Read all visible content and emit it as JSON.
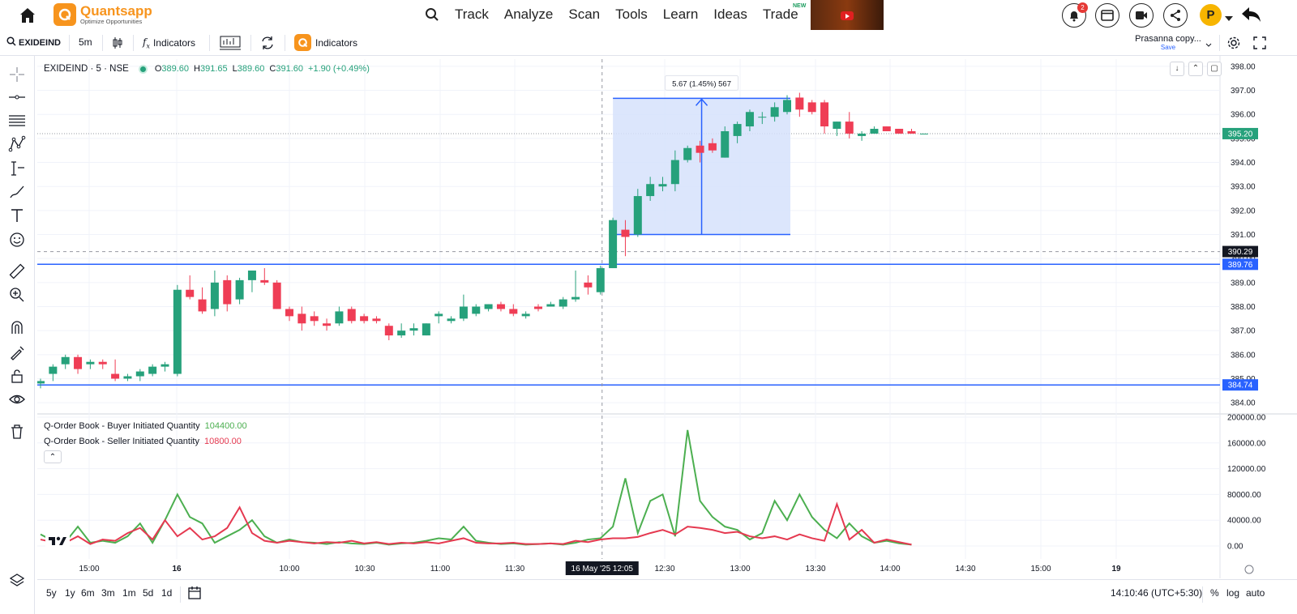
{
  "nav": {
    "logo_name": "Quantsapp",
    "logo_tagline": "Optimize Opportunities",
    "links": [
      "Track",
      "Analyze",
      "Scan",
      "Tools",
      "Learn",
      "Ideas",
      "Trade"
    ],
    "trade_badge": "NEW",
    "notification_count": "2",
    "avatar_letter": "P"
  },
  "toolbar": {
    "symbol": "EXIDEIND",
    "interval": "5m",
    "indicators_label": "Indicators",
    "q_indicators_label": "Indicators",
    "layout_name": "Prasanna copy...",
    "save_label": "Save"
  },
  "legend": {
    "title": "EXIDEIND · 5 · NSE",
    "o_label": "O",
    "o_value": "389.60",
    "h_label": "H",
    "h_value": "391.65",
    "l_label": "L",
    "l_value": "389.60",
    "c_label": "C",
    "c_value": "391.60",
    "change": "+1.90 (+0.49%)"
  },
  "measure_label": "5.67 (1.45%) 567",
  "price_tags": {
    "last": "395.20",
    "crosshair": "390.29",
    "hline_upper": "389.76",
    "hline_lower": "384.74"
  },
  "indicator": {
    "buyer_label": "Q-Order Book - Buyer Initiated Quantity",
    "buyer_value": "104400.00",
    "seller_label": "Q-Order Book - Seller Initiated Quantity",
    "seller_value": "10800.00"
  },
  "crosshair_time": "16 May '25   12:05",
  "bottom": {
    "ranges": [
      "5y",
      "1y",
      "6m",
      "3m",
      "1m",
      "5d",
      "1d"
    ],
    "clock": "14:10:46 (UTC+5:30)",
    "pct": "%",
    "log": "log",
    "auto": "auto"
  },
  "colors": {
    "up": "#26a17b",
    "down": "#ef3d55",
    "buyer_line": "#4caf50",
    "seller_line": "#e53950",
    "hline": "#2962ff",
    "measure_fill": "#d6e2fb",
    "accent": "#f7941d"
  },
  "chart_data": [
    {
      "type": "candlestick",
      "title": "EXIDEIND · 5 · NSE",
      "y_ticks": [
        384,
        385,
        386,
        387,
        388,
        389,
        390,
        391,
        392,
        393,
        394,
        395,
        396,
        397,
        398
      ],
      "x_ticks": [
        "15:00",
        "16",
        "10:00",
        "10:30",
        "11:00",
        "11:30",
        "12:30",
        "13:00",
        "13:30",
        "14:00",
        "14:30",
        "15:00",
        "19"
      ],
      "ylim": [
        383.6,
        398.3
      ],
      "candles": [
        [
          384.8,
          385.0,
          384.6,
          384.9
        ],
        [
          385.2,
          385.6,
          384.9,
          385.5
        ],
        [
          385.6,
          386.0,
          385.4,
          385.9
        ],
        [
          385.9,
          386.0,
          385.2,
          385.4
        ],
        [
          385.6,
          385.8,
          385.4,
          385.7
        ],
        [
          385.7,
          385.8,
          385.4,
          385.6
        ],
        [
          385.2,
          385.8,
          384.9,
          385.0
        ],
        [
          385.0,
          385.2,
          384.9,
          385.1
        ],
        [
          385.1,
          385.4,
          384.9,
          385.3
        ],
        [
          385.2,
          385.6,
          385.1,
          385.5
        ],
        [
          385.5,
          385.7,
          385.3,
          385.6
        ],
        [
          385.2,
          388.9,
          385.1,
          388.7
        ],
        [
          388.7,
          389.3,
          388.3,
          388.4
        ],
        [
          388.3,
          388.8,
          387.7,
          387.8
        ],
        [
          387.9,
          389.5,
          387.6,
          389.0
        ],
        [
          389.1,
          389.3,
          387.8,
          388.1
        ],
        [
          388.3,
          389.2,
          388.1,
          389.1
        ],
        [
          389.1,
          389.5,
          388.6,
          389.5
        ],
        [
          389.1,
          389.6,
          388.9,
          389.0
        ],
        [
          389.0,
          389.1,
          387.9,
          387.9
        ],
        [
          387.9,
          388.0,
          387.4,
          387.6
        ],
        [
          387.7,
          388.0,
          387.0,
          387.3
        ],
        [
          387.6,
          387.8,
          387.2,
          387.4
        ],
        [
          387.3,
          387.5,
          387.0,
          387.2
        ],
        [
          387.3,
          388.0,
          387.2,
          387.8
        ],
        [
          387.9,
          388.0,
          387.3,
          387.4
        ],
        [
          387.6,
          387.7,
          387.3,
          387.4
        ],
        [
          387.5,
          387.6,
          387.3,
          387.4
        ],
        [
          387.2,
          387.3,
          386.6,
          386.8
        ],
        [
          386.8,
          387.3,
          386.7,
          387.0
        ],
        [
          387.0,
          387.3,
          386.8,
          387.1
        ],
        [
          386.8,
          387.3,
          386.8,
          387.3
        ],
        [
          387.6,
          387.8,
          387.3,
          387.7
        ],
        [
          387.4,
          387.6,
          387.3,
          387.5
        ],
        [
          387.5,
          388.5,
          387.4,
          388.0
        ],
        [
          387.7,
          388.1,
          387.6,
          388.0
        ],
        [
          387.9,
          388.1,
          387.8,
          388.1
        ],
        [
          388.1,
          388.2,
          387.8,
          387.9
        ],
        [
          387.9,
          388.1,
          387.6,
          387.7
        ],
        [
          387.6,
          387.8,
          387.5,
          387.7
        ],
        [
          388.0,
          388.1,
          387.8,
          387.9
        ],
        [
          388.0,
          388.2,
          388.0,
          388.1
        ],
        [
          388.0,
          388.4,
          387.9,
          388.3
        ],
        [
          388.3,
          389.5,
          388.2,
          388.4
        ],
        [
          389.0,
          389.3,
          388.5,
          388.8
        ],
        [
          388.6,
          389.7,
          388.5,
          389.6
        ],
        [
          389.6,
          391.7,
          389.6,
          391.6
        ],
        [
          391.2,
          391.6,
          390.1,
          390.9
        ],
        [
          391.0,
          392.9,
          390.9,
          392.6
        ],
        [
          392.6,
          393.4,
          392.4,
          393.1
        ],
        [
          393.0,
          393.4,
          392.8,
          393.1
        ],
        [
          393.1,
          394.5,
          392.8,
          394.1
        ],
        [
          394.1,
          394.7,
          394.0,
          394.6
        ],
        [
          394.7,
          394.9,
          394.0,
          394.4
        ],
        [
          394.8,
          395.0,
          394.4,
          394.5
        ],
        [
          394.2,
          395.5,
          394.2,
          395.3
        ],
        [
          395.1,
          395.7,
          394.8,
          395.6
        ],
        [
          395.5,
          396.2,
          395.3,
          396.1
        ],
        [
          395.9,
          396.1,
          395.6,
          395.9
        ],
        [
          395.9,
          396.5,
          395.7,
          396.3
        ],
        [
          396.1,
          396.8,
          396.0,
          396.6
        ],
        [
          396.7,
          396.9,
          395.9,
          396.2
        ],
        [
          396.5,
          396.6,
          396.0,
          396.1
        ],
        [
          396.5,
          396.6,
          395.2,
          395.5
        ],
        [
          395.4,
          395.7,
          395.1,
          395.7
        ],
        [
          395.7,
          396.1,
          395.0,
          395.2
        ],
        [
          395.1,
          395.3,
          394.9,
          395.2
        ],
        [
          395.2,
          395.5,
          395.2,
          395.4
        ],
        [
          395.5,
          395.5,
          395.3,
          395.3
        ],
        [
          395.4,
          395.4,
          395.2,
          395.2
        ],
        [
          395.3,
          395.4,
          395.2,
          395.2
        ],
        [
          395.2,
          395.2,
          395.2,
          395.2
        ]
      ]
    },
    {
      "type": "line",
      "y_ticks": [
        0,
        40000,
        80000,
        120000,
        160000,
        200000
      ],
      "ylim": [
        0,
        200000
      ],
      "series": [
        {
          "name": "Q-Order Book - Buyer Initiated Quantity",
          "values": [
            18000,
            8000,
            6000,
            30000,
            5000,
            8000,
            5000,
            15000,
            35000,
            5000,
            40000,
            80000,
            45000,
            35000,
            5000,
            15000,
            25000,
            40000,
            15000,
            5000,
            10000,
            6000,
            5000,
            3000,
            6000,
            4000,
            3000,
            5000,
            2000,
            4000,
            5000,
            8000,
            12000,
            10000,
            30000,
            8000,
            5000,
            3000,
            4000,
            2000,
            3000,
            4000,
            2000,
            5000,
            10000,
            12000,
            30000,
            105000,
            20000,
            70000,
            80000,
            15000,
            180000,
            70000,
            45000,
            30000,
            25000,
            10000,
            20000,
            70000,
            40000,
            80000,
            45000,
            25000,
            12000,
            35000,
            15000,
            5000,
            8000,
            4000,
            2000
          ]
        },
        {
          "name": "Q-Order Book - Seller Initiated Quantity",
          "values": [
            10000,
            6000,
            5000,
            15000,
            3000,
            10000,
            8000,
            20000,
            28000,
            10000,
            40000,
            15000,
            28000,
            10000,
            15000,
            28000,
            60000,
            20000,
            8000,
            5000,
            8000,
            6000,
            4000,
            6000,
            5000,
            8000,
            4000,
            6000,
            3000,
            5000,
            4000,
            6000,
            4000,
            8000,
            12000,
            5000,
            4000,
            4000,
            5000,
            3000,
            3000,
            4000,
            3000,
            8000,
            6000,
            10000,
            12000,
            12000,
            14000,
            20000,
            25000,
            18000,
            30000,
            28000,
            25000,
            20000,
            22000,
            15000,
            12000,
            15000,
            10000,
            18000,
            12000,
            8000,
            65000,
            10000,
            25000,
            5000,
            10000,
            6000,
            2000
          ]
        }
      ],
      "title": ""
    }
  ]
}
